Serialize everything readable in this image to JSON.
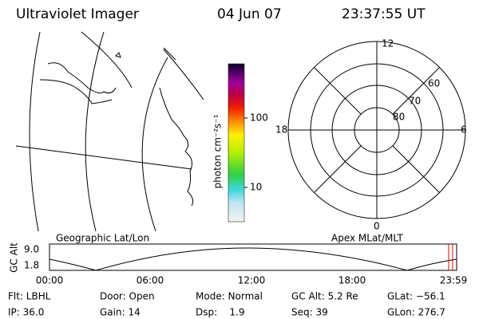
{
  "header": {
    "instrument": "Ultraviolet Imager",
    "date": "04 Jun 07",
    "time": "23:37:55 UT"
  },
  "colorbar": {
    "label": "photon cm⁻²s⁻¹",
    "ticks": [
      "100",
      "10"
    ]
  },
  "polar": {
    "mlt_labels": [
      "12",
      "18",
      "6",
      "0"
    ],
    "mlat_labels": [
      "60",
      "70",
      "80"
    ]
  },
  "altitude": {
    "left_title": "Geographic Lat/Lon",
    "right_title": "Apex MLat/MLT",
    "ylabel": "GC Alt",
    "yticks": [
      "9.0",
      "1.8"
    ],
    "xticks": [
      "00:00",
      "06:00",
      "12:00",
      "18:00",
      "23:59"
    ]
  },
  "status": {
    "rows": [
      [
        "Flt: LBHL",
        "Door: Open",
        "Mode: Normal",
        "GC Alt: 5.2 Re",
        "GLat: −56.1"
      ],
      [
        "IP: 36.0",
        "Gain: 14",
        "Dsp:    1.9",
        "Seq: 39",
        "GLon: 276.7"
      ]
    ]
  }
}
